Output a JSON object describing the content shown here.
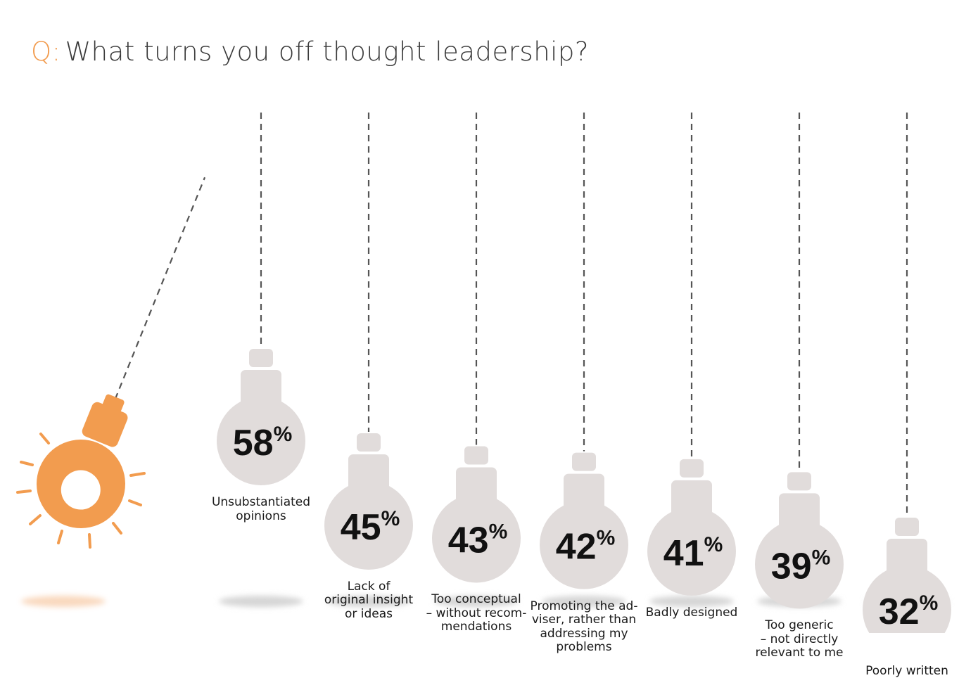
{
  "title": {
    "prefix": "Q",
    "text": "What turns you off thought leadership?"
  },
  "colors": {
    "accent": "#f29c4f",
    "bulb": "#e1dcdb",
    "text": "#1a1a1a",
    "shadow": "#d6d6d6"
  },
  "chart_data": {
    "type": "bar",
    "title": "What turns you off thought leadership?",
    "unit": "%",
    "categories": [
      "Unsubstantiated opinions",
      "Lack of original insight or ideas",
      "Too conceptual – without recommendations",
      "Promoting the adviser, rather than addressing my problems",
      "Badly designed",
      "Too generic – not directly relevant to me",
      "Poorly written"
    ],
    "values": [
      58,
      45,
      43,
      42,
      41,
      39,
      32
    ],
    "label_lines": [
      [
        "Unsubstantiated",
        "opinions"
      ],
      [
        "Lack of",
        "original insight",
        "or ideas"
      ],
      [
        "Too conceptual",
        "– without recom-",
        "mendations"
      ],
      [
        "Promoting the ad-",
        "viser, rather than",
        "addressing my",
        "problems"
      ],
      [
        "Badly designed"
      ],
      [
        "Too generic",
        "– not directly",
        "relevant to me"
      ],
      [
        "Poorly written"
      ]
    ],
    "ylim": [
      0,
      100
    ]
  }
}
